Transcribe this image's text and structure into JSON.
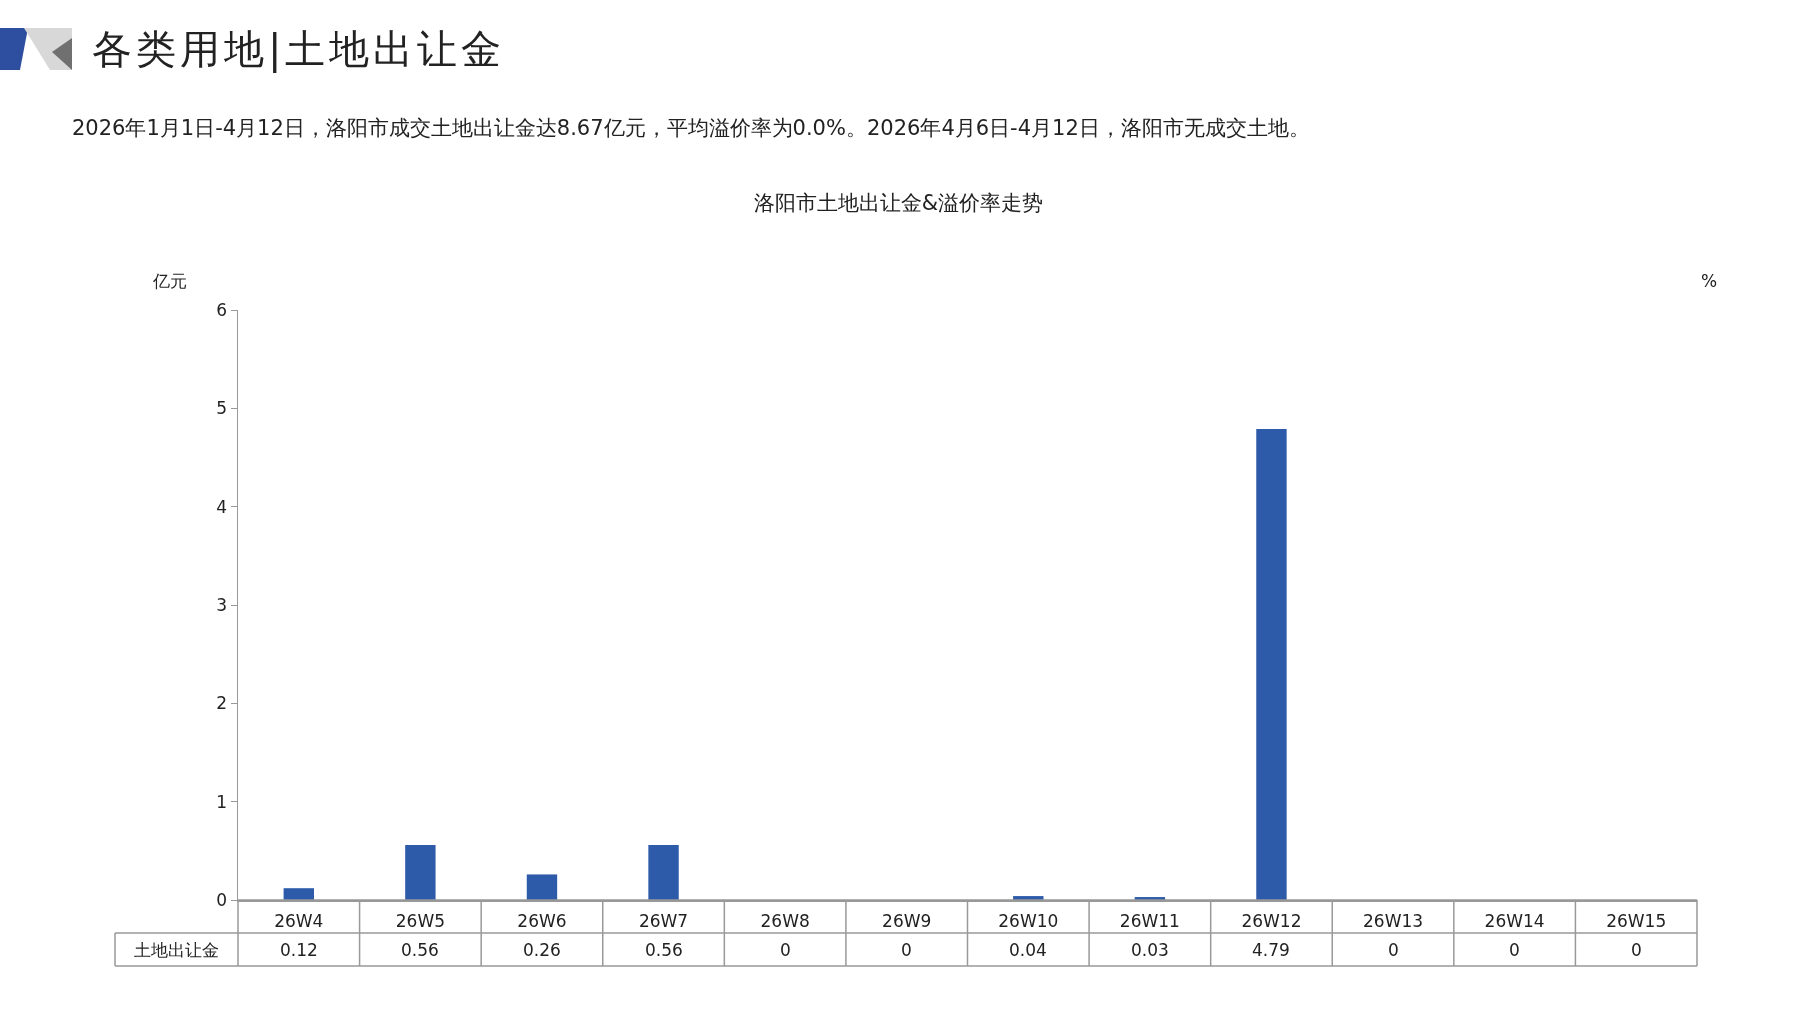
{
  "chart_data": {
    "type": "bar",
    "title": "洛阳市土地出让金&溢价率走势",
    "annotations": [
      "各类用地|土地出让金",
      "2026年1月1日-4月12日，洛阳市成交土地出让金达8.67亿元，平均溢价率为0.0%。2026年4月6日-4月12日，洛阳市无成交土地。"
    ],
    "ylabel": "亿元",
    "y2label": "%",
    "categories": [
      "26W4",
      "26W5",
      "26W6",
      "26W7",
      "26W8",
      "26W9",
      "26W10",
      "26W11",
      "26W12",
      "26W13",
      "26W14",
      "26W15"
    ],
    "series": [
      {
        "name": "土地出让金",
        "color": "#2e5ba9",
        "values": [
          0.12,
          0.56,
          0.26,
          0.56,
          0,
          0,
          0.04,
          0.03,
          4.79,
          0,
          0,
          0
        ]
      }
    ],
    "ylim": [
      0,
      6
    ],
    "yticks": [
      0,
      1,
      2,
      3,
      4,
      5,
      6
    ],
    "grid": false,
    "legend": false,
    "data_labels": true
  }
}
